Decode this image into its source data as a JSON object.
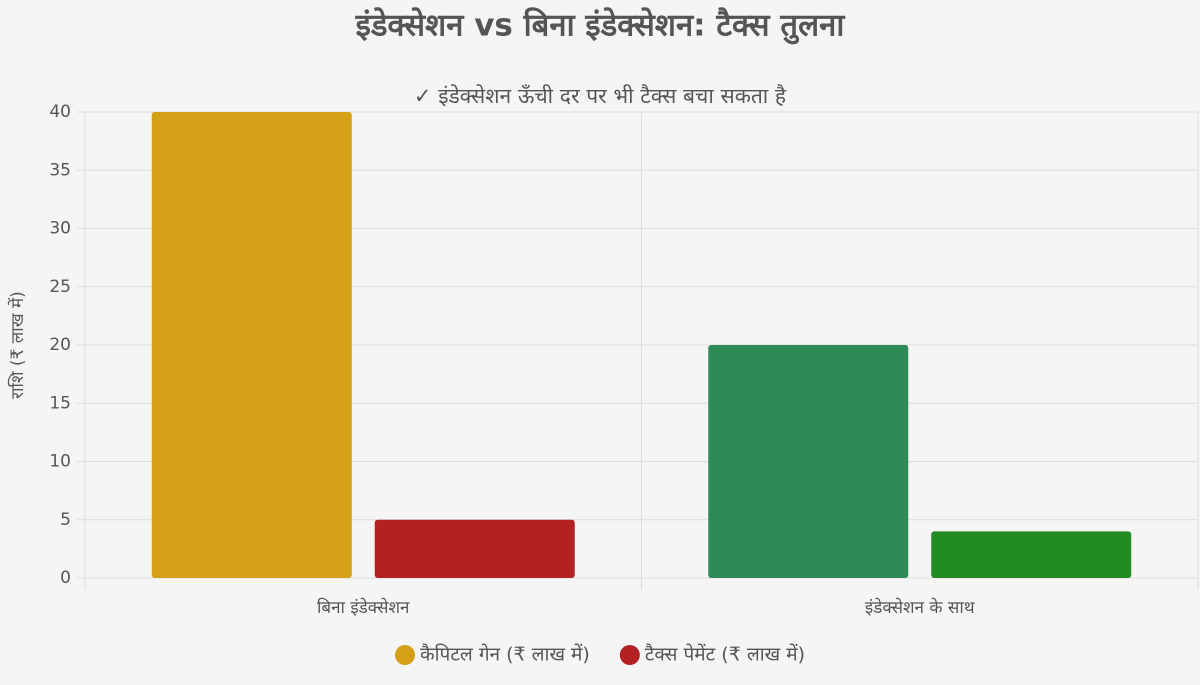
{
  "chart_data": {
    "type": "bar",
    "title": "इंडेक्सेशन vs बिना इंडेक्सेशन: टैक्स तुलना",
    "subtitle": "✓ इंडेक्सेशन ऊँची दर पर भी टैक्स बचा सकता है",
    "y_label": "राशि (₹ लाख में)",
    "categories": [
      "बिना इंडेक्सेशन",
      "इंडेक्सेशन के साथ"
    ],
    "series": [
      {
        "name": "कैपिटल गेन (₹ लाख में)",
        "color": "#d4a017",
        "colors": [
          "#d4a017",
          "#2e8b57"
        ],
        "values": [
          40,
          20
        ]
      },
      {
        "name": "टैक्स पेमेंट (₹ लाख में)",
        "color": "#b22222",
        "colors": [
          "#b22222",
          "#228b22"
        ],
        "values": [
          5,
          4
        ]
      }
    ],
    "ylim": [
      0,
      40
    ],
    "yticks": [
      0,
      5,
      10,
      15,
      20,
      25,
      30,
      35,
      40
    ],
    "grid": true,
    "legend": "bottom"
  }
}
